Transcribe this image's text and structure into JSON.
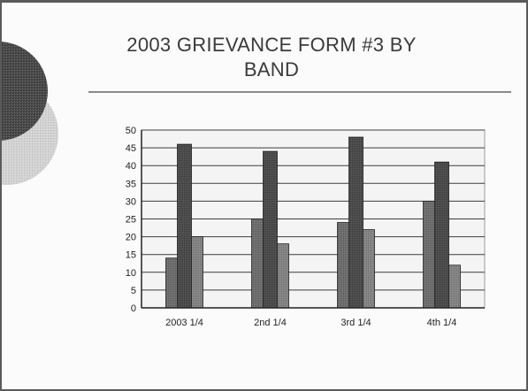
{
  "slide": {
    "title": "2003 GRIEVANCE FORM #3 BY BAND"
  },
  "chart_data": {
    "type": "bar",
    "title": "2003 GRIEVANCE FORM #3 BY BAND",
    "xlabel": "",
    "ylabel": "",
    "categories": [
      "2003 1/4",
      "2nd 1/4",
      "3rd 1/4",
      "4th 1/4"
    ],
    "series": [
      {
        "values": [
          14,
          25,
          24,
          30
        ]
      },
      {
        "values": [
          46,
          44,
          48,
          41
        ]
      },
      {
        "values": [
          20,
          18,
          22,
          12
        ]
      }
    ],
    "ylim": [
      0,
      50
    ],
    "yticks": [
      0,
      5,
      10,
      15,
      20,
      25,
      30,
      35,
      40,
      45,
      50
    ],
    "grid": true,
    "legend": "none",
    "colors": [
      "#6e6e6e",
      "#4a4a4a",
      "#858585"
    ]
  }
}
